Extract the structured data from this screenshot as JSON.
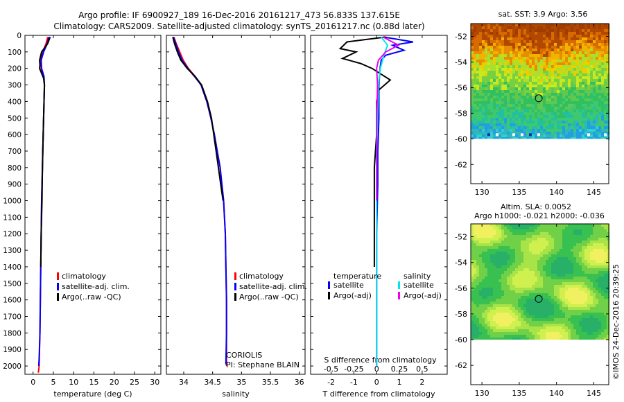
{
  "header": {
    "title_line1": "Argo profile: IF 6900927_189 16-Dec-2016 20161217_473 56.833S 137.615E",
    "title_line2": "Climatology: CARS2009. Satellite-adjusted climatology: synTS_20161217.nc (0.88d later)"
  },
  "colors": {
    "climatology": "#ff0000",
    "satellite": "#0000ff",
    "argo": "#000000",
    "sal_satellite": "#00e5ee",
    "sal_argo": "#ee00ee"
  },
  "depth_axis": {
    "range": [
      0,
      2050
    ],
    "ticks": [
      "0",
      "100",
      "200",
      "300",
      "400",
      "500",
      "600",
      "700",
      "800",
      "900",
      "1000",
      "1100",
      "1200",
      "1300",
      "1400",
      "1500",
      "1600",
      "1700",
      "1800",
      "1900",
      "2000"
    ]
  },
  "legend": {
    "climatology": "climatology",
    "satellite_adj": "satellite-adj. clim.",
    "argo_raw": "Argo(..raw -QC)",
    "diff_temperature": "temperature",
    "diff_salinity": "salinity",
    "satellite": "satellite",
    "argo_adj": "Argo(-adj)"
  },
  "notes": {
    "center": "CORIOLIS",
    "pi": "PI: Stephane BLAIN",
    "watermark": "©IMOS 24-Dec-2016 20:39:25"
  },
  "chart_data": [
    {
      "type": "line",
      "name_key": "temperature",
      "xlabel": "temperature (deg C)",
      "xlim": [
        -2,
        31.5
      ],
      "xticks": [
        "0",
        "5",
        "10",
        "15",
        "20",
        "25",
        "30"
      ],
      "ylim": [
        0,
        2050
      ],
      "series": [
        {
          "key": "climatology",
          "color": "#ff0000",
          "x": [
            3.6,
            3.2,
            2.4,
            1.9,
            2.0,
            2.6,
            2.8,
            2.7,
            2.6,
            2.5,
            2.4,
            2.3,
            2.2,
            2.1,
            2.0,
            1.9,
            1.8,
            1.7,
            1.5,
            1.3
          ],
          "y": [
            10,
            50,
            100,
            150,
            200,
            250,
            300,
            400,
            500,
            600,
            700,
            800,
            900,
            1000,
            1200,
            1400,
            1600,
            1800,
            2000,
            2040
          ]
        },
        {
          "key": "satellite",
          "color": "#0000ff",
          "x": [
            3.9,
            3.5,
            2.6,
            2.0,
            2.1,
            2.7,
            2.8,
            2.7,
            2.6,
            2.5,
            2.4,
            2.3,
            2.2,
            2.1,
            2.0,
            1.9,
            1.8,
            1.7,
            1.5,
            1.4
          ],
          "y": [
            10,
            50,
            100,
            150,
            200,
            250,
            300,
            400,
            500,
            600,
            700,
            800,
            900,
            1000,
            1200,
            1400,
            1600,
            1800,
            1950,
            2000
          ]
        },
        {
          "key": "argo",
          "color": "#000000",
          "x": [
            4.2,
            3.6,
            2.1,
            1.6,
            1.7,
            1.6,
            2.6,
            2.8,
            2.7,
            2.6,
            2.5,
            2.3,
            2.2,
            2.0,
            1.9
          ],
          "y": [
            10,
            50,
            100,
            150,
            180,
            200,
            260,
            300,
            400,
            500,
            600,
            800,
            1000,
            1200,
            1400
          ]
        }
      ]
    },
    {
      "type": "line",
      "name_key": "salinity",
      "xlabel": "salinity",
      "xlim": [
        33.7,
        36.1
      ],
      "xticks": [
        "34",
        "34.5",
        "35",
        "35.5",
        "36"
      ],
      "ylim": [
        0,
        2050
      ],
      "series": [
        {
          "key": "climatology",
          "color": "#ff0000",
          "x": [
            33.83,
            33.87,
            33.93,
            33.99,
            34.08,
            34.2,
            34.3,
            34.4,
            34.47,
            34.53,
            34.58,
            34.63,
            34.66,
            34.69,
            34.72,
            34.73,
            34.74,
            34.74,
            34.74
          ],
          "y": [
            10,
            50,
            100,
            150,
            200,
            250,
            300,
            400,
            500,
            600,
            700,
            800,
            900,
            1000,
            1200,
            1400,
            1600,
            1800,
            2000
          ]
        },
        {
          "key": "satellite",
          "color": "#0000ff",
          "x": [
            33.82,
            33.86,
            33.91,
            33.97,
            34.07,
            34.19,
            34.3,
            34.4,
            34.47,
            34.53,
            34.58,
            34.63,
            34.66,
            34.69,
            34.72,
            34.73,
            34.74,
            34.74,
            34.73
          ],
          "y": [
            10,
            50,
            100,
            150,
            200,
            250,
            300,
            400,
            500,
            600,
            700,
            800,
            900,
            1000,
            1200,
            1400,
            1600,
            1800,
            1990
          ]
        },
        {
          "key": "argo",
          "color": "#000000",
          "x": [
            33.81,
            33.84,
            33.89,
            33.95,
            34.06,
            34.2,
            34.31,
            34.41,
            34.48,
            34.52,
            34.56,
            34.6,
            34.64,
            34.68
          ],
          "y": [
            10,
            50,
            100,
            150,
            200,
            250,
            300,
            400,
            500,
            600,
            700,
            800,
            900,
            1000
          ]
        }
      ]
    },
    {
      "type": "line",
      "name_key": "difference",
      "xlabel": "T difference from climatology",
      "x2label": "S difference from climatology",
      "xlim": [
        -2.9,
        3.1
      ],
      "xticks": [
        "-2",
        "-1",
        "0",
        "1",
        "2"
      ],
      "x2lim": [
        -0.725,
        0.775
      ],
      "x2ticks": [
        "-0.5",
        "-0.25",
        "0",
        "0.25",
        "0.5"
      ],
      "ylim": [
        0,
        2050
      ],
      "series": [
        {
          "key": "t_satellite",
          "color": "#0000ff",
          "x": [
            0.3,
            1.6,
            0.7,
            1.2,
            0.4,
            0.2,
            0.15,
            0.1,
            0.1,
            0.05,
            0.05,
            0.0,
            0.0,
            0.0,
            0.0
          ],
          "y": [
            10,
            40,
            60,
            90,
            120,
            150,
            200,
            300,
            500,
            700,
            900,
            1200,
            1500,
            1800,
            2000
          ]
        },
        {
          "key": "t_argo",
          "color": "#000000",
          "x": [
            0.4,
            -1.3,
            -1.6,
            -0.9,
            -1.5,
            -0.7,
            -0.2,
            0.6,
            0.1,
            0.0,
            0.0,
            -0.1,
            -0.1,
            -0.1,
            -0.1
          ],
          "y": [
            10,
            40,
            80,
            100,
            140,
            170,
            200,
            270,
            330,
            400,
            600,
            800,
            1000,
            1200,
            1400
          ]
        },
        {
          "key": "s_satellite",
          "color": "#00e5ee",
          "x": [
            0.05,
            0.12,
            0.08,
            0.04,
            0.02,
            0.01,
            0.0,
            0.0,
            0.0,
            0.0,
            0.0,
            0.0
          ],
          "y": [
            10,
            60,
            120,
            200,
            300,
            500,
            700,
            900,
            1200,
            1500,
            1800,
            2000
          ]
        },
        {
          "key": "s_argo",
          "color": "#ee00ee",
          "x": [
            0.07,
            0.24,
            0.1,
            0.02,
            0.0,
            0.01,
            0.0,
            0.0,
            0.0,
            0.0
          ],
          "y": [
            10,
            60,
            100,
            150,
            200,
            300,
            500,
            700,
            900,
            1000
          ]
        }
      ]
    }
  ],
  "maps": [
    {
      "title": "sat. SST: 3.9 Argo: 3.56",
      "type": "sst",
      "lat_ticks": [
        "-52",
        "-54",
        "-56",
        "-58",
        "-60",
        "-62"
      ],
      "lon_ticks": [
        "130",
        "135",
        "140",
        "145"
      ],
      "lat_range": [
        -51,
        -63.5
      ],
      "lon_range": [
        128.5,
        147
      ],
      "data_lat_min": -60,
      "marker": {
        "lon": 137.615,
        "lat": -56.833
      }
    },
    {
      "title": "Altim. SLA: 0.0052",
      "subtitle": "Argo h1000: -0.021 h2000: -0.036",
      "type": "sla",
      "lat_ticks": [
        "-52",
        "-54",
        "-56",
        "-58",
        "-60",
        "-62"
      ],
      "lon_ticks": [
        "130",
        "135",
        "140",
        "145"
      ],
      "lat_range": [
        -51,
        -63.5
      ],
      "lon_range": [
        128.5,
        147
      ],
      "data_lat_min": -60,
      "marker": {
        "lon": 137.615,
        "lat": -56.833
      }
    }
  ]
}
